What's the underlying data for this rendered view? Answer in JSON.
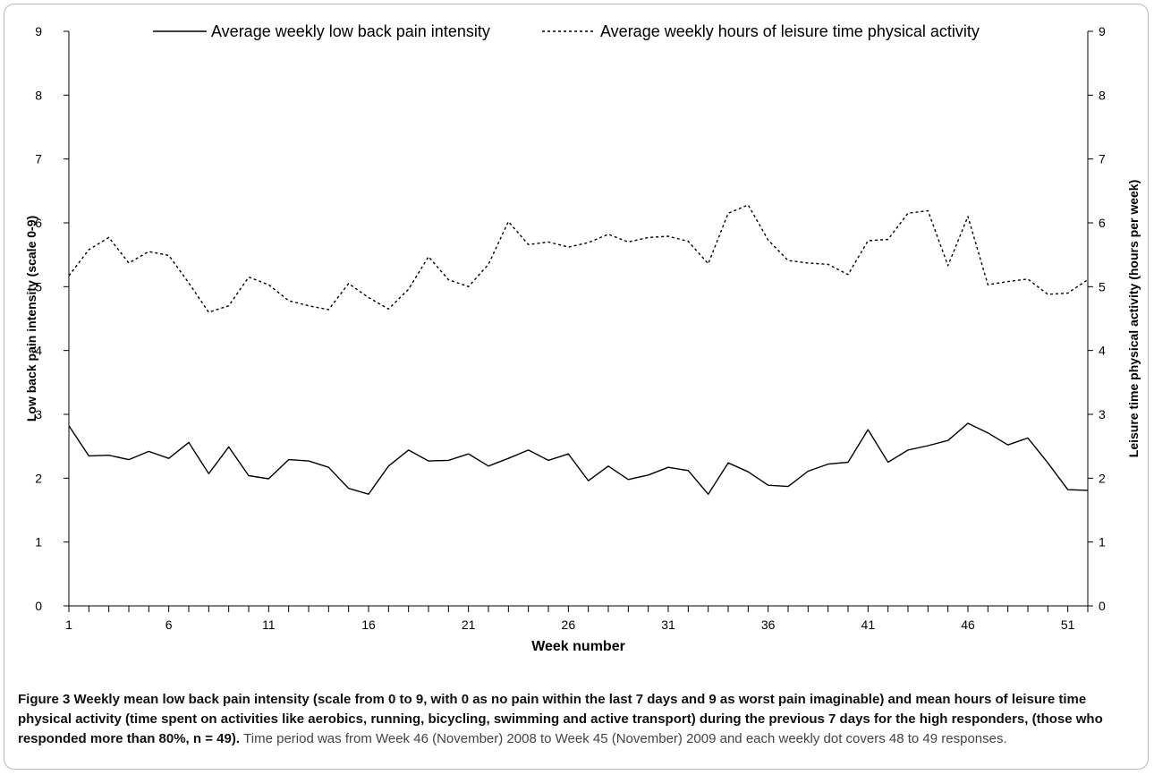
{
  "chart_data": {
    "type": "line",
    "xlabel": "Week number",
    "ylabel_left": "Low back pain intensity (scale 0-9)",
    "ylabel_right": "Leisure time physical activity (hours per week)",
    "xlim": [
      1,
      52
    ],
    "ylim": [
      0,
      9
    ],
    "x_ticks": [
      1,
      6,
      11,
      16,
      21,
      26,
      31,
      36,
      41,
      46,
      51
    ],
    "y_ticks": [
      0,
      1,
      2,
      3,
      4,
      5,
      6,
      7,
      8,
      9
    ],
    "x": [
      1,
      2,
      3,
      4,
      5,
      6,
      7,
      8,
      9,
      10,
      11,
      12,
      13,
      14,
      15,
      16,
      17,
      18,
      19,
      20,
      21,
      22,
      23,
      24,
      25,
      26,
      27,
      28,
      29,
      30,
      31,
      32,
      33,
      34,
      35,
      36,
      37,
      38,
      39,
      40,
      41,
      42,
      43,
      44,
      45,
      46,
      47,
      48,
      49,
      50,
      51,
      52
    ],
    "legend_position": "top",
    "grid": false,
    "series": [
      {
        "name": "Average weekly low back pain intensity",
        "style": "solid",
        "axis": "left",
        "color": "#000000",
        "values": [
          2.82,
          2.35,
          2.36,
          2.29,
          2.42,
          2.31,
          2.56,
          2.07,
          2.49,
          2.04,
          1.99,
          2.29,
          2.27,
          2.17,
          1.84,
          1.75,
          2.19,
          2.44,
          2.27,
          2.28,
          2.38,
          2.19,
          2.31,
          2.44,
          2.28,
          2.38,
          1.96,
          2.19,
          1.98,
          2.05,
          2.17,
          2.12,
          1.75,
          2.24,
          2.1,
          1.89,
          1.87,
          2.11,
          2.22,
          2.25,
          2.76,
          2.25,
          2.44,
          2.51,
          2.59,
          2.86,
          2.71,
          2.52,
          2.63,
          2.24,
          1.82,
          1.81
        ]
      },
      {
        "name": "Average weekly hours of leisure time physical activity",
        "style": "dashed",
        "axis": "right",
        "color": "#000000",
        "values": [
          5.17,
          5.58,
          5.77,
          5.37,
          5.55,
          5.49,
          5.06,
          4.6,
          4.7,
          5.15,
          5.03,
          4.78,
          4.7,
          4.64,
          5.05,
          4.83,
          4.65,
          4.96,
          5.47,
          5.11,
          5.0,
          5.35,
          6.02,
          5.66,
          5.7,
          5.62,
          5.69,
          5.82,
          5.7,
          5.77,
          5.79,
          5.71,
          5.36,
          6.15,
          6.28,
          5.73,
          5.41,
          5.37,
          5.35,
          5.19,
          5.72,
          5.74,
          6.15,
          6.19,
          5.33,
          6.1,
          5.03,
          5.08,
          5.12,
          4.88,
          4.9,
          5.11
        ]
      }
    ]
  },
  "caption": {
    "bold": "Figure 3 Weekly mean low back pain intensity (scale from 0 to 9, with 0 as no pain within the last 7 days and 9 as worst pain imaginable) and mean hours of leisure time physical activity (time spent on activities like aerobics, running, bicycling, swimming and active transport) during the previous 7 days for the high responders, (those who responded more than 80%, n = 49)",
    "sep": ". ",
    "normal": "Time period was from Week 46 (November) 2008 to Week 45 (November) 2009 and each weekly dot covers 48 to 49 responses."
  }
}
